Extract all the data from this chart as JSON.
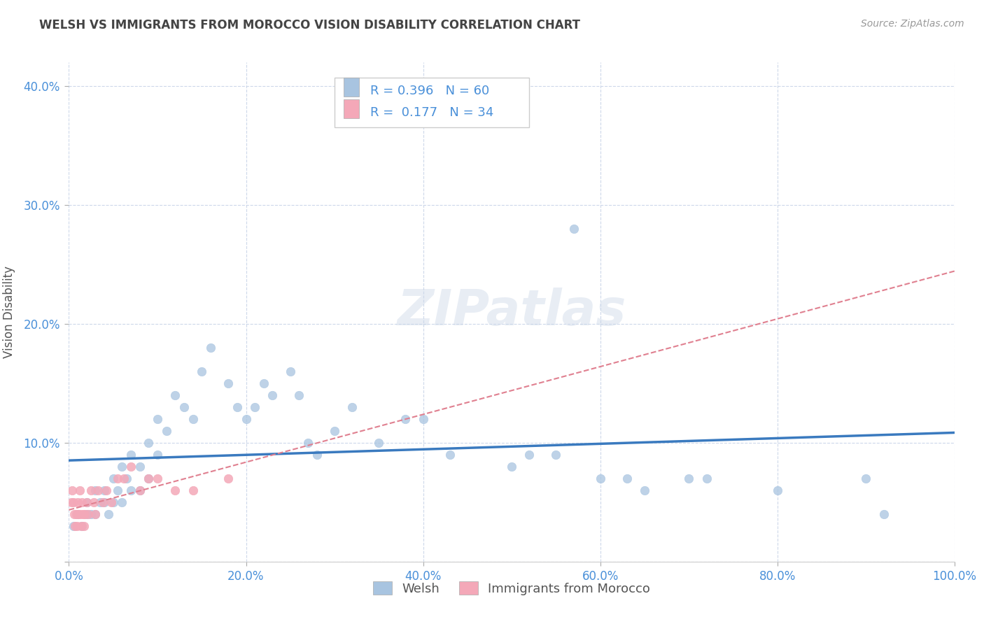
{
  "title": "WELSH VS IMMIGRANTS FROM MOROCCO VISION DISABILITY CORRELATION CHART",
  "source": "Source: ZipAtlas.com",
  "ylabel": "Vision Disability",
  "watermark": "ZIPatlas",
  "xlim": [
    0,
    1.0
  ],
  "ylim": [
    0,
    0.42
  ],
  "xticks": [
    0.0,
    0.2,
    0.4,
    0.6,
    0.8,
    1.0
  ],
  "yticks": [
    0.0,
    0.1,
    0.2,
    0.3,
    0.4
  ],
  "xtick_labels": [
    "0.0%",
    "20.0%",
    "40.0%",
    "60.0%",
    "80.0%",
    "100.0%"
  ],
  "ytick_labels": [
    "",
    "10.0%",
    "20.0%",
    "30.0%",
    "40.0%"
  ],
  "welsh_R": 0.396,
  "welsh_N": 60,
  "morocco_R": 0.177,
  "morocco_N": 34,
  "welsh_color": "#a8c4e0",
  "morocco_color": "#f4a8b8",
  "welsh_line_color": "#3a7abf",
  "morocco_line_color": "#e08090",
  "legend_label_welsh": "Welsh",
  "legend_label_morocco": "Immigrants from Morocco",
  "welsh_scatter_x": [
    0.005,
    0.01,
    0.015,
    0.02,
    0.02,
    0.025,
    0.03,
    0.03,
    0.035,
    0.04,
    0.04,
    0.045,
    0.05,
    0.05,
    0.055,
    0.06,
    0.06,
    0.065,
    0.07,
    0.07,
    0.08,
    0.08,
    0.09,
    0.09,
    0.1,
    0.1,
    0.11,
    0.12,
    0.13,
    0.14,
    0.15,
    0.16,
    0.18,
    0.19,
    0.2,
    0.21,
    0.22,
    0.23,
    0.25,
    0.26,
    0.27,
    0.28,
    0.3,
    0.32,
    0.35,
    0.38,
    0.4,
    0.43,
    0.5,
    0.52,
    0.55,
    0.57,
    0.6,
    0.63,
    0.65,
    0.7,
    0.72,
    0.8,
    0.9,
    0.92
  ],
  "welsh_scatter_y": [
    0.03,
    0.04,
    0.03,
    0.05,
    0.04,
    0.04,
    0.06,
    0.04,
    0.05,
    0.06,
    0.05,
    0.04,
    0.07,
    0.05,
    0.06,
    0.08,
    0.05,
    0.07,
    0.09,
    0.06,
    0.08,
    0.06,
    0.1,
    0.07,
    0.12,
    0.09,
    0.11,
    0.14,
    0.13,
    0.12,
    0.16,
    0.18,
    0.15,
    0.13,
    0.12,
    0.13,
    0.15,
    0.14,
    0.16,
    0.14,
    0.1,
    0.09,
    0.11,
    0.13,
    0.1,
    0.12,
    0.12,
    0.09,
    0.08,
    0.09,
    0.09,
    0.28,
    0.07,
    0.07,
    0.06,
    0.07,
    0.07,
    0.06,
    0.07,
    0.04
  ],
  "morocco_scatter_x": [
    0.003,
    0.004,
    0.005,
    0.006,
    0.007,
    0.008,
    0.009,
    0.01,
    0.011,
    0.012,
    0.013,
    0.014,
    0.015,
    0.016,
    0.017,
    0.018,
    0.02,
    0.022,
    0.025,
    0.028,
    0.03,
    0.033,
    0.038,
    0.042,
    0.048,
    0.055,
    0.062,
    0.07,
    0.08,
    0.09,
    0.1,
    0.12,
    0.14,
    0.18
  ],
  "morocco_scatter_y": [
    0.05,
    0.06,
    0.05,
    0.04,
    0.03,
    0.04,
    0.03,
    0.05,
    0.04,
    0.06,
    0.04,
    0.03,
    0.05,
    0.04,
    0.03,
    0.04,
    0.05,
    0.04,
    0.06,
    0.05,
    0.04,
    0.06,
    0.05,
    0.06,
    0.05,
    0.07,
    0.07,
    0.08,
    0.06,
    0.07,
    0.07,
    0.06,
    0.06,
    0.07
  ],
  "background_color": "#ffffff",
  "grid_color": "#c8d4e8",
  "title_color": "#444444",
  "axis_color": "#4a90d9",
  "tick_color": "#4a90d9"
}
